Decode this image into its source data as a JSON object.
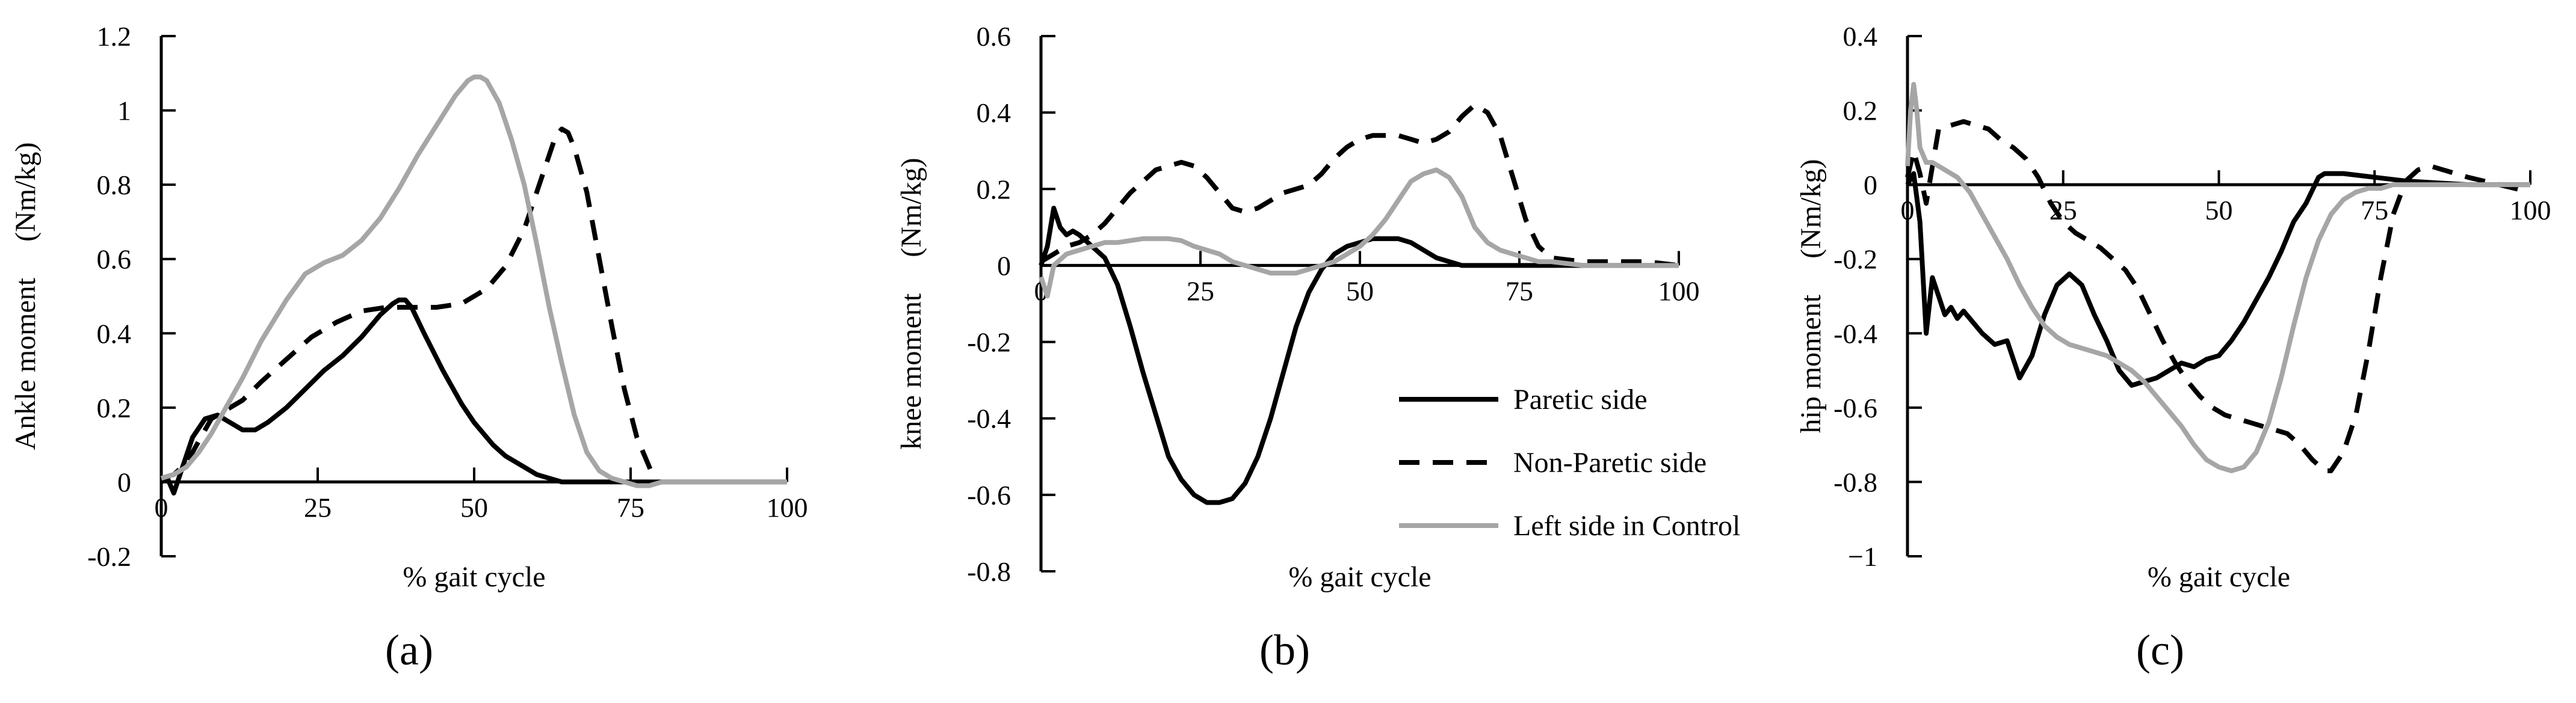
{
  "colors": {
    "paretic": "#000000",
    "non_paretic": "#000000",
    "control": "#a6a6a6",
    "axis": "#000000"
  },
  "legend": [
    {
      "label": "Paretic side",
      "style": "solid",
      "color": "#000000"
    },
    {
      "label": "Non-Paretic side",
      "style": "dashed",
      "color": "#000000"
    },
    {
      "label": "Left side in Control",
      "style": "solid",
      "color": "#a6a6a6"
    }
  ],
  "chart_data": [
    {
      "panel": "(a)",
      "type": "line",
      "xlabel": "% gait cycle",
      "ylabel": "Ankle moment 　(Nm/kg)",
      "xlim": [
        0,
        100
      ],
      "ylim": [
        -0.2,
        1.2
      ],
      "xticks": [
        0,
        25,
        50,
        75,
        100
      ],
      "yticks": [
        -0.2,
        0,
        0.2,
        0.4,
        0.6,
        0.8,
        1,
        1.2
      ],
      "ytick_labels": [
        "-0.2",
        "0",
        "0.2",
        "0.4",
        "0.6",
        "0.8",
        "1",
        "1.2"
      ],
      "series": [
        {
          "name": "Paretic side",
          "x": [
            0,
            1,
            2,
            3,
            5,
            7,
            9,
            11,
            13,
            15,
            17,
            20,
            23,
            26,
            29,
            32,
            35,
            37,
            38,
            39,
            40,
            42,
            45,
            48,
            50,
            53,
            55,
            58,
            60,
            62,
            64,
            66,
            70,
            75,
            80,
            90,
            100
          ],
          "y": [
            0,
            0.01,
            -0.03,
            0.02,
            0.12,
            0.17,
            0.18,
            0.16,
            0.14,
            0.14,
            0.16,
            0.2,
            0.25,
            0.3,
            0.34,
            0.39,
            0.45,
            0.48,
            0.49,
            0.49,
            0.47,
            0.4,
            0.3,
            0.21,
            0.16,
            0.1,
            0.07,
            0.04,
            0.02,
            0.01,
            0,
            0,
            0,
            0,
            0,
            0,
            0
          ]
        },
        {
          "name": "Non-Paretic side",
          "x": [
            0,
            2,
            4,
            6,
            8,
            10,
            13,
            16,
            20,
            24,
            28,
            32,
            36,
            40,
            44,
            48,
            52,
            55,
            58,
            60,
            62,
            63,
            64,
            65,
            66,
            68,
            70,
            72,
            74,
            76,
            78,
            79
          ],
          "y": [
            0.01,
            0.02,
            0.05,
            0.11,
            0.17,
            0.19,
            0.22,
            0.27,
            0.33,
            0.39,
            0.43,
            0.46,
            0.47,
            0.47,
            0.47,
            0.48,
            0.52,
            0.58,
            0.68,
            0.78,
            0.88,
            0.93,
            0.95,
            0.94,
            0.9,
            0.78,
            0.6,
            0.42,
            0.25,
            0.12,
            0.04,
            0
          ]
        },
        {
          "name": "Left side in Control",
          "x": [
            0,
            2,
            4,
            6,
            8,
            10,
            13,
            16,
            20,
            23,
            26,
            29,
            32,
            35,
            38,
            41,
            44,
            47,
            49,
            50,
            51,
            52,
            54,
            56,
            58,
            60,
            62,
            64,
            66,
            68,
            70,
            72,
            74,
            76,
            78,
            80,
            90,
            100
          ],
          "y": [
            0.01,
            0.02,
            0.04,
            0.08,
            0.13,
            0.19,
            0.28,
            0.38,
            0.49,
            0.56,
            0.59,
            0.61,
            0.65,
            0.71,
            0.79,
            0.88,
            0.96,
            1.04,
            1.08,
            1.09,
            1.09,
            1.08,
            1.02,
            0.92,
            0.8,
            0.64,
            0.47,
            0.32,
            0.18,
            0.08,
            0.03,
            0.01,
            0,
            -0.01,
            -0.01,
            0,
            0,
            0
          ]
        }
      ]
    },
    {
      "panel": "(b)",
      "type": "line",
      "xlabel": "% gait cycle",
      "ylabel": "knee moment 　(Nm/kg)",
      "xlim": [
        0,
        100
      ],
      "ylim": [
        -0.8,
        0.6
      ],
      "xticks": [
        0,
        25,
        50,
        75,
        100
      ],
      "yticks": [
        -0.8,
        -0.6,
        -0.4,
        -0.2,
        0,
        0.2,
        0.4,
        0.6
      ],
      "ytick_labels": [
        "-0.8",
        "-0.6",
        "-0.4",
        "-0.2",
        "0",
        "0.2",
        "0.4",
        "0.6"
      ],
      "series": [
        {
          "name": "Paretic side",
          "x": [
            0,
            1,
            2,
            3,
            4,
            5,
            6,
            8,
            10,
            12,
            14,
            16,
            18,
            20,
            22,
            24,
            26,
            28,
            30,
            32,
            34,
            36,
            38,
            40,
            42,
            44,
            46,
            48,
            50,
            52,
            54,
            56,
            58,
            60,
            62,
            64,
            66,
            70,
            75,
            80,
            90,
            100
          ],
          "y": [
            0,
            0.05,
            0.15,
            0.1,
            0.08,
            0.09,
            0.08,
            0.05,
            0.02,
            -0.05,
            -0.16,
            -0.28,
            -0.39,
            -0.5,
            -0.56,
            -0.6,
            -0.62,
            -0.62,
            -0.61,
            -0.57,
            -0.5,
            -0.4,
            -0.28,
            -0.16,
            -0.07,
            -0.01,
            0.03,
            0.05,
            0.06,
            0.07,
            0.07,
            0.07,
            0.06,
            0.04,
            0.02,
            0.01,
            0,
            0,
            0,
            0,
            0,
            0
          ]
        },
        {
          "name": "Non-Paretic side",
          "x": [
            0,
            2,
            4,
            6,
            8,
            10,
            12,
            14,
            16,
            18,
            20,
            22,
            24,
            26,
            28,
            30,
            32,
            34,
            36,
            38,
            40,
            42,
            44,
            46,
            48,
            50,
            52,
            54,
            56,
            58,
            60,
            62,
            64,
            66,
            68,
            70,
            72,
            74,
            76,
            78,
            80,
            85,
            90,
            95,
            100
          ],
          "y": [
            0.01,
            0.03,
            0.05,
            0.06,
            0.08,
            0.11,
            0.15,
            0.19,
            0.22,
            0.25,
            0.26,
            0.27,
            0.26,
            0.23,
            0.19,
            0.15,
            0.14,
            0.15,
            0.17,
            0.19,
            0.2,
            0.21,
            0.24,
            0.28,
            0.31,
            0.33,
            0.34,
            0.34,
            0.34,
            0.33,
            0.32,
            0.33,
            0.35,
            0.39,
            0.42,
            0.4,
            0.34,
            0.23,
            0.12,
            0.05,
            0.02,
            0.01,
            0.01,
            0.01,
            0
          ]
        },
        {
          "name": "Left side in Control",
          "x": [
            0,
            1,
            2,
            4,
            6,
            8,
            10,
            12,
            14,
            16,
            18,
            20,
            22,
            24,
            26,
            28,
            30,
            32,
            34,
            36,
            38,
            40,
            42,
            44,
            46,
            48,
            50,
            52,
            54,
            56,
            58,
            60,
            62,
            64,
            66,
            68,
            70,
            72,
            74,
            76,
            78,
            80,
            85,
            90,
            100
          ],
          "y": [
            -0.03,
            -0.08,
            0,
            0.03,
            0.04,
            0.05,
            0.06,
            0.06,
            0.065,
            0.07,
            0.07,
            0.07,
            0.065,
            0.05,
            0.04,
            0.03,
            0.01,
            0,
            -0.01,
            -0.02,
            -0.02,
            -0.02,
            -0.01,
            0,
            0.01,
            0.03,
            0.05,
            0.08,
            0.12,
            0.17,
            0.22,
            0.24,
            0.25,
            0.23,
            0.18,
            0.1,
            0.06,
            0.04,
            0.03,
            0.02,
            0.01,
            0.01,
            0,
            0,
            0
          ]
        }
      ]
    },
    {
      "panel": "(c)",
      "type": "line",
      "xlabel": "% gait cycle",
      "ylabel": "hip moment 　(Nm/kg)",
      "xlim": [
        0,
        100
      ],
      "ylim": [
        -1,
        0.4
      ],
      "xticks": [
        0,
        25,
        50,
        75,
        100
      ],
      "yticks": [
        -1,
        -0.8,
        -0.6,
        -0.4,
        -0.2,
        0,
        0.2,
        0.4
      ],
      "ytick_labels": [
        "−1",
        "-0.8",
        "-0.6",
        "-0.4",
        "-0.2",
        "0",
        "0.2",
        "0.4"
      ],
      "series": [
        {
          "name": "Paretic side",
          "x": [
            0,
            1,
            2,
            3,
            4,
            5,
            6,
            7,
            8,
            9,
            10,
            12,
            14,
            16,
            18,
            20,
            22,
            24,
            26,
            28,
            30,
            32,
            34,
            36,
            38,
            40,
            42,
            44,
            46,
            48,
            50,
            52,
            54,
            56,
            58,
            60,
            62,
            64,
            66,
            67,
            68,
            70,
            75,
            80,
            90,
            100
          ],
          "y": [
            0,
            0.03,
            -0.1,
            -0.4,
            -0.25,
            -0.3,
            -0.35,
            -0.33,
            -0.36,
            -0.34,
            -0.36,
            -0.4,
            -0.43,
            -0.42,
            -0.52,
            -0.46,
            -0.35,
            -0.27,
            -0.24,
            -0.27,
            -0.35,
            -0.42,
            -0.5,
            -0.54,
            -0.53,
            -0.52,
            -0.5,
            -0.48,
            -0.49,
            -0.47,
            -0.46,
            -0.42,
            -0.37,
            -0.31,
            -0.25,
            -0.18,
            -0.1,
            -0.05,
            0.02,
            0.03,
            0.03,
            0.03,
            0.02,
            0.01,
            0,
            0
          ]
        },
        {
          "name": "Non-Paretic side",
          "x": [
            0,
            1,
            2,
            3,
            5,
            7,
            9,
            11,
            13,
            15,
            17,
            19,
            21,
            23,
            25,
            27,
            29,
            31,
            33,
            35,
            37,
            39,
            41,
            43,
            45,
            47,
            49,
            51,
            53,
            55,
            57,
            59,
            61,
            63,
            65,
            67,
            68,
            70,
            72,
            74,
            76,
            78,
            80,
            82,
            84,
            86,
            90,
            95,
            100
          ],
          "y": [
            0.02,
            0.09,
            0.03,
            -0.05,
            0.15,
            0.16,
            0.17,
            0.16,
            0.15,
            0.12,
            0.1,
            0.07,
            0.02,
            -0.05,
            -0.1,
            -0.13,
            -0.15,
            -0.17,
            -0.2,
            -0.23,
            -0.28,
            -0.35,
            -0.42,
            -0.48,
            -0.53,
            -0.57,
            -0.6,
            -0.62,
            -0.63,
            -0.64,
            -0.65,
            -0.66,
            -0.67,
            -0.7,
            -0.74,
            -0.77,
            -0.77,
            -0.72,
            -0.62,
            -0.45,
            -0.25,
            -0.08,
            0.01,
            0.04,
            0.05,
            0.04,
            0.02,
            0,
            -0.02
          ]
        },
        {
          "name": "Left side in Control",
          "x": [
            0,
            0.5,
            1,
            1.5,
            2,
            3,
            4,
            6,
            8,
            10,
            12,
            14,
            16,
            18,
            20,
            22,
            24,
            26,
            28,
            30,
            32,
            34,
            36,
            38,
            40,
            42,
            44,
            46,
            48,
            50,
            52,
            54,
            56,
            58,
            60,
            62,
            64,
            66,
            68,
            70,
            72,
            74,
            76,
            78,
            80,
            85,
            90,
            100
          ],
          "y": [
            0.05,
            0.2,
            0.27,
            0.2,
            0.1,
            0.06,
            0.06,
            0.04,
            0.02,
            -0.02,
            -0.08,
            -0.14,
            -0.2,
            -0.27,
            -0.33,
            -0.38,
            -0.41,
            -0.43,
            -0.44,
            -0.45,
            -0.46,
            -0.48,
            -0.5,
            -0.53,
            -0.57,
            -0.61,
            -0.65,
            -0.7,
            -0.74,
            -0.76,
            -0.77,
            -0.76,
            -0.72,
            -0.64,
            -0.52,
            -0.38,
            -0.25,
            -0.15,
            -0.08,
            -0.04,
            -0.02,
            -0.01,
            -0.01,
            0,
            0,
            0,
            0,
            0
          ]
        }
      ]
    }
  ]
}
